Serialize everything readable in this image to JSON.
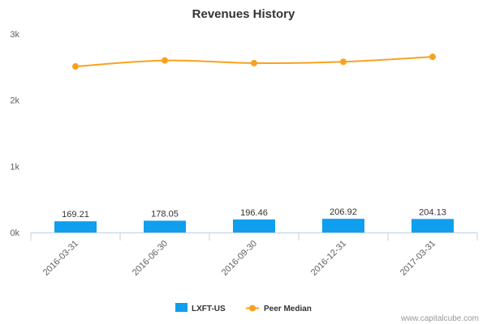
{
  "chart_data": {
    "type": "bar",
    "title": "Revenues History",
    "xlabel": "",
    "ylabel": "",
    "categories": [
      "2016-03-31",
      "2016-06-30",
      "2016-09-30",
      "2016-12-31",
      "2017-03-31"
    ],
    "ylim": [
      0,
      3000
    ],
    "yticks": [
      0,
      1000,
      2000,
      3000
    ],
    "ytick_labels": [
      "0k",
      "1k",
      "2k",
      "3k"
    ],
    "series": [
      {
        "name": "LXFT-US",
        "type": "bar",
        "color": "#109eee",
        "values": [
          169.21,
          178.05,
          196.46,
          206.92,
          204.13
        ],
        "data_labels": [
          "169.21",
          "178.05",
          "196.46",
          "206.92",
          "204.13"
        ]
      },
      {
        "name": "Peer Median",
        "type": "line",
        "color": "#f7a21f",
        "values": [
          2510,
          2600,
          2560,
          2580,
          2655
        ]
      }
    ],
    "legend_position": "bottom-center",
    "grid": false,
    "credit": "www.capitalcube.com"
  }
}
